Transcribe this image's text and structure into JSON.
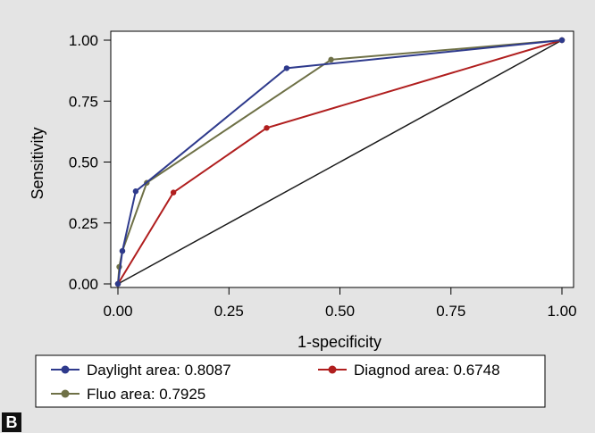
{
  "panel_label": "B",
  "chart_data": {
    "type": "line",
    "title": "",
    "xlabel": "1-specificity",
    "ylabel": "Sensitivity",
    "xlim": [
      0,
      1
    ],
    "ylim": [
      0,
      1
    ],
    "xticks": [
      "0.00",
      "0.25",
      "0.50",
      "0.75",
      "1.00"
    ],
    "yticks": [
      "0.00",
      "0.25",
      "0.50",
      "0.75",
      "1.00"
    ],
    "grid": false,
    "legend_position": "bottom",
    "series": [
      {
        "name": "Daylight area: 0.8087",
        "color": "#2e3a8c",
        "x": [
          0,
          0.01,
          0.04,
          0.38,
          1
        ],
        "y": [
          0,
          0.135,
          0.38,
          0.885,
          1
        ]
      },
      {
        "name": "Diagnod area: 0.6748",
        "color": "#b01e1e",
        "x": [
          0,
          0.125,
          0.335,
          1
        ],
        "y": [
          0,
          0.375,
          0.64,
          1
        ]
      },
      {
        "name": "Fluo area: 0.7925",
        "color": "#6e7046",
        "x": [
          0,
          0.003,
          0.01,
          0.065,
          0.48,
          1
        ],
        "y": [
          0,
          0.07,
          0.135,
          0.415,
          0.92,
          1
        ]
      },
      {
        "name": "",
        "color": "#1a1a1a",
        "x": [
          0,
          1
        ],
        "y": [
          0,
          1
        ]
      }
    ]
  }
}
